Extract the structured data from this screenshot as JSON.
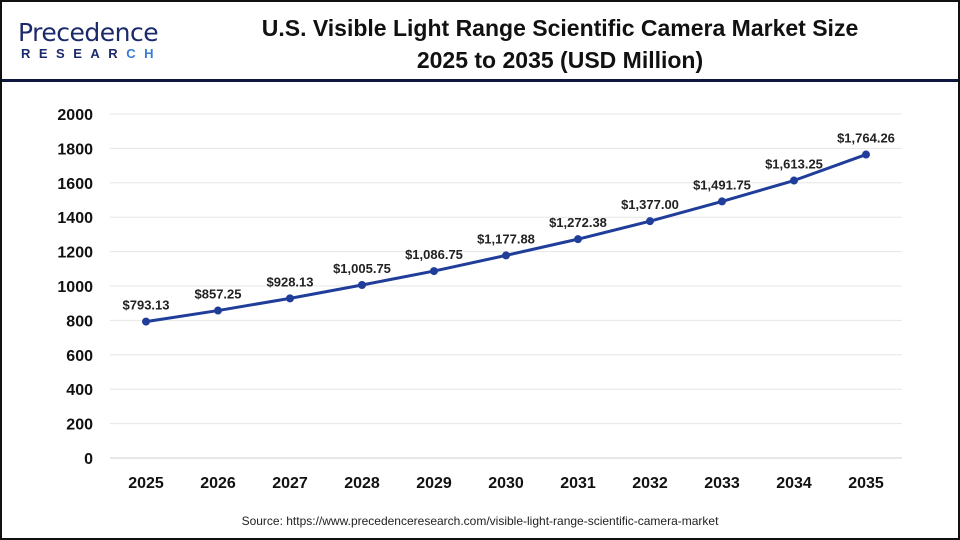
{
  "logo": {
    "name_part1": "P",
    "name_part2": "recedence",
    "sub_part1": "RESEAR",
    "sub_part2": "CH"
  },
  "colors": {
    "line": "#1f3d99",
    "header_rule": "#0d1740",
    "grid": "#e6e6e6"
  },
  "source": "Source: https://www.precedenceresearch.com/visible-light-range-scientific-camera-market",
  "chart_data": {
    "type": "line",
    "title": "U.S. Visible Light Range Scientific Camera Market Size 2025 to 2035 (USD Million)",
    "title_line1": "U.S. Visible Light Range Scientific Camera Market Size",
    "title_line2": "2025 to 2035 (USD Million)",
    "xlabel": "",
    "ylabel": "",
    "categories": [
      "2025",
      "2026",
      "2027",
      "2028",
      "2029",
      "2030",
      "2031",
      "2032",
      "2033",
      "2034",
      "2035"
    ],
    "values": [
      793.13,
      857.25,
      928.13,
      1005.75,
      1086.75,
      1177.88,
      1272.38,
      1377.0,
      1491.75,
      1613.25,
      1764.26
    ],
    "data_labels": [
      "$793.13",
      "$857.25",
      "$928.13",
      "$1,005.75",
      "$1,086.75",
      "$1,177.88",
      "$1,272.38",
      "$1,377.00",
      "$1,491.75",
      "$1,613.25",
      "$1,764.26"
    ],
    "ylim": [
      0,
      2000
    ],
    "yticks": [
      0,
      200,
      400,
      600,
      800,
      1000,
      1200,
      1400,
      1600,
      1800,
      2000
    ],
    "grid": true,
    "legend": "none"
  }
}
